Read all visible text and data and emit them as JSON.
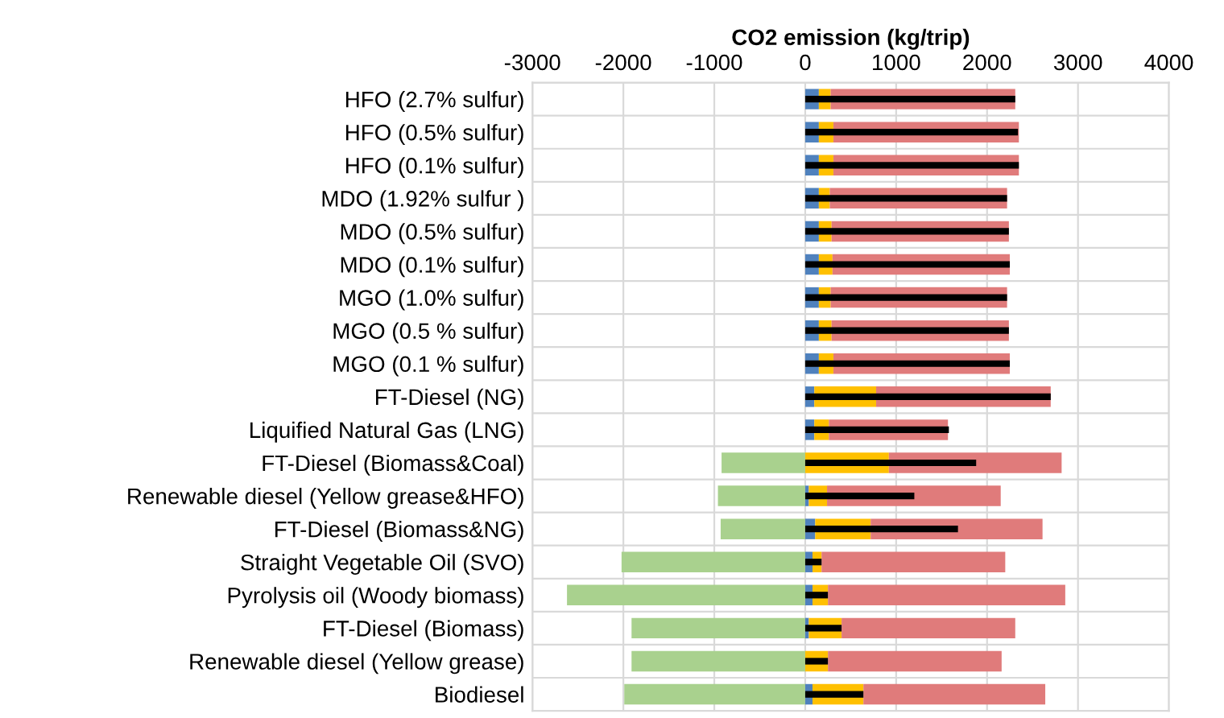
{
  "chart_data": [
    {
      "type": "bar",
      "orientation": "horizontal",
      "stacked": true,
      "xlabel": "CO2 emission (kg/trip)",
      "categories": [
        "HFO (2.7% sulfur)",
        "HFO (0.5% sulfur)",
        "HFO (0.1% sulfur)",
        "MDO (1.92% sulfur )",
        "MDO (0.5% sulfur)",
        "MDO (0.1% sulfur)",
        "MGO (1.0% sulfur)",
        "MGO (0.5 % sulfur)",
        "MGO (0.1 % sulfur)",
        "FT-Diesel (NG)",
        "Liquified Natural Gas (LNG)",
        "FT-Diesel (Biomass&Coal)",
        "Renewable diesel (Yellow grease&HFO)",
        "FT-Diesel (Biomass&NG)",
        "Straight Vegetable Oil (SVO)",
        "Pyrolysis oil (Woody biomass)",
        "FT-Diesel (Biomass)",
        "Renewable diesel (Yellow grease)",
        "Biodiesel"
      ],
      "series": [
        {
          "color": "#a9d18e",
          "values": [
            0,
            0,
            0,
            0,
            0,
            0,
            0,
            0,
            0,
            0,
            0,
            -920,
            -960,
            -930,
            -2020,
            -2620,
            -1910,
            -1910,
            -1990
          ]
        },
        {
          "color": "#4f81bd",
          "values": [
            150,
            150,
            150,
            150,
            150,
            150,
            150,
            150,
            150,
            100,
            100,
            0,
            40,
            110,
            80,
            80,
            40,
            0,
            80
          ]
        },
        {
          "color": "#ffc000",
          "values": [
            130,
            160,
            160,
            120,
            140,
            150,
            130,
            140,
            160,
            680,
            160,
            920,
            200,
            610,
            100,
            170,
            360,
            250,
            560
          ]
        },
        {
          "color": "#e07b7b",
          "values": [
            2030,
            2040,
            2040,
            1950,
            1950,
            1950,
            1940,
            1950,
            1940,
            1920,
            1310,
            1900,
            1910,
            1890,
            2020,
            2610,
            1910,
            1910,
            2000
          ]
        }
      ],
      "xlim": [
        -3000,
        4000
      ],
      "xticks": [
        -3000,
        -2000,
        -1000,
        0,
        1000,
        2000,
        3000,
        4000
      ],
      "grid": true
    },
    {
      "type": "bar",
      "orientation": "horizontal",
      "tick_labels": false,
      "categories": [
        null,
        null,
        null,
        null,
        null,
        null,
        null,
        null,
        null,
        null,
        null,
        null,
        null,
        null,
        null,
        null,
        null,
        null,
        null
      ],
      "series": [
        {
          "color": "#000000",
          "values": [
            2310,
            2340,
            2350,
            2220,
            2240,
            2250,
            2220,
            2240,
            2250,
            2700,
            1580,
            1880,
            1200,
            1680,
            180,
            250,
            400,
            250,
            640
          ]
        }
      ],
      "xlim": [
        -3000,
        4000
      ],
      "xticks": [
        -3000,
        -2000,
        -1000,
        0,
        1000,
        2000,
        3000,
        4000
      ]
    }
  ]
}
